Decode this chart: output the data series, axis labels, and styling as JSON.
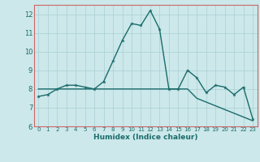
{
  "xlabel": "Humidex (Indice chaleur)",
  "bg_color": "#cce8ea",
  "grid_color": "#aacfd4",
  "line_color": "#1a6b6b",
  "spine_color": "#cc6666",
  "x_values": [
    0,
    1,
    2,
    3,
    4,
    5,
    6,
    7,
    8,
    9,
    10,
    11,
    12,
    13,
    14,
    15,
    16,
    17,
    18,
    19,
    20,
    21,
    22,
    23
  ],
  "line1_y": [
    7.6,
    7.7,
    8.0,
    8.2,
    8.2,
    8.1,
    8.0,
    8.4,
    9.5,
    10.6,
    11.5,
    11.4,
    12.2,
    11.2,
    8.0,
    8.0,
    9.0,
    8.6,
    7.8,
    8.2,
    8.1,
    7.7,
    8.1,
    6.4
  ],
  "line2_y": [
    8.0,
    8.0,
    8.0,
    8.0,
    8.0,
    8.0,
    8.0,
    8.0,
    8.0,
    8.0,
    8.0,
    8.0,
    8.0,
    8.0,
    8.0,
    8.0,
    8.0,
    7.5,
    7.3,
    7.1,
    6.9,
    6.7,
    6.5,
    6.3
  ],
  "ylim": [
    6,
    12.5
  ],
  "xlim": [
    -0.5,
    23.5
  ],
  "yticks": [
    6,
    7,
    8,
    9,
    10,
    11,
    12
  ],
  "xticks": [
    0,
    1,
    2,
    3,
    4,
    5,
    6,
    7,
    8,
    9,
    10,
    11,
    12,
    13,
    14,
    15,
    16,
    17,
    18,
    19,
    20,
    21,
    22,
    23
  ],
  "marker": "*",
  "linewidth": 1.0,
  "markersize": 3.5
}
